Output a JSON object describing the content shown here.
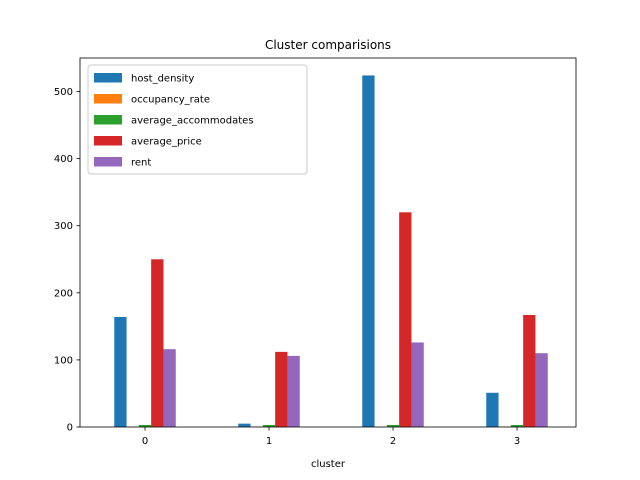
{
  "chart_data": {
    "type": "bar",
    "title": "Cluster comparisions",
    "xlabel": "cluster",
    "ylabel": "",
    "categories": [
      "0",
      "1",
      "2",
      "3"
    ],
    "ylim": [
      0,
      550
    ],
    "yticks": [
      0,
      100,
      200,
      300,
      400,
      500
    ],
    "grid": false,
    "legend_position": "top-left",
    "series": [
      {
        "name": "host_density",
        "color": "#1f77b4",
        "values": [
          164,
          5,
          524,
          51
        ]
      },
      {
        "name": "occupancy_rate",
        "color": "#ff7f0e",
        "values": [
          0.5,
          0.5,
          0.5,
          0.5
        ]
      },
      {
        "name": "average_accommodates",
        "color": "#2ca02c",
        "values": [
          3,
          3,
          3,
          3
        ]
      },
      {
        "name": "average_price",
        "color": "#d62728",
        "values": [
          250,
          112,
          320,
          167
        ]
      },
      {
        "name": "rent",
        "color": "#9467bd",
        "values": [
          116,
          106,
          126,
          110
        ]
      }
    ]
  }
}
